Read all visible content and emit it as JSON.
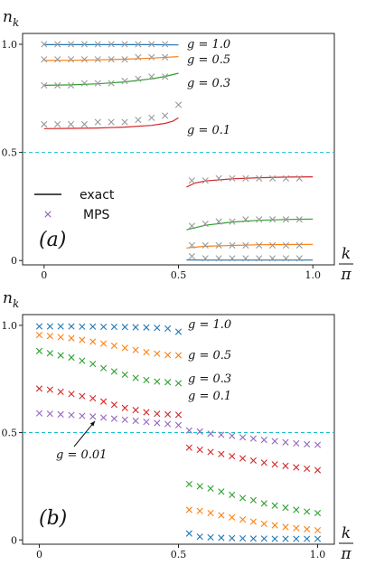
{
  "colors": {
    "g1.0": "#1f77b4",
    "g0.5": "#ff7f0e",
    "g0.3": "#2ca02c",
    "g0.1": "#d62728",
    "g0.01": "#9467bd",
    "mps_marker": "#9467bd",
    "half_line": "#17becf",
    "gray_mps": "#999999"
  },
  "chart_data": [
    {
      "type": "line",
      "panel_label": "(a)",
      "ylabel": "n_k",
      "xlabel": "k/π",
      "xticks": [
        "0",
        "0.5",
        "1.0"
      ],
      "yticks": [
        "0",
        "0.5",
        "1.0"
      ],
      "xlim": [
        -0.08,
        1.08
      ],
      "ylim": [
        -0.02,
        1.05
      ],
      "reference_line_y": 0.5,
      "legend": {
        "position": "lower-left",
        "entries": [
          "exact",
          "MPS"
        ]
      },
      "series": [
        {
          "name": "g = 1.0",
          "label": "g = 1.0",
          "color_key": "g1.0",
          "exact": {
            "x": [
              0.0,
              0.1,
              0.2,
              0.3,
              0.4,
              0.5,
              0.53,
              0.6,
              0.7,
              0.8,
              0.9,
              1.0
            ],
            "y": [
              0.998,
              0.998,
              0.998,
              0.998,
              0.998,
              0.997,
              0.003,
              0.002,
              0.002,
              0.002,
              0.002,
              0.002
            ]
          },
          "mps": {
            "x": [
              0.0,
              0.05,
              0.1,
              0.15,
              0.2,
              0.25,
              0.3,
              0.35,
              0.4,
              0.45,
              0.55,
              0.6,
              0.65,
              0.7,
              0.75,
              0.8,
              0.85,
              0.9,
              0.95
            ],
            "y": [
              1.0,
              1.0,
              1.0,
              1.0,
              1.0,
              1.0,
              1.0,
              1.0,
              1.0,
              1.0,
              0.02,
              0.01,
              0.01,
              0.01,
              0.01,
              0.01,
              0.01,
              0.01,
              0.01
            ]
          }
        },
        {
          "name": "g = 0.5",
          "label": "g = 0.5",
          "color_key": "g0.5",
          "exact": {
            "x": [
              0.0,
              0.1,
              0.2,
              0.3,
              0.4,
              0.5,
              0.53,
              0.6,
              0.7,
              0.8,
              0.9,
              1.0
            ],
            "y": [
              0.925,
              0.926,
              0.928,
              0.931,
              0.936,
              0.943,
              0.058,
              0.066,
              0.07,
              0.073,
              0.074,
              0.075
            ]
          },
          "mps": {
            "x": [
              0.0,
              0.05,
              0.1,
              0.15,
              0.2,
              0.25,
              0.3,
              0.35,
              0.4,
              0.45,
              0.55,
              0.6,
              0.65,
              0.7,
              0.75,
              0.8,
              0.85,
              0.9,
              0.95
            ],
            "y": [
              0.93,
              0.93,
              0.93,
              0.93,
              0.93,
              0.93,
              0.93,
              0.94,
              0.94,
              0.94,
              0.07,
              0.07,
              0.07,
              0.07,
              0.07,
              0.07,
              0.07,
              0.07,
              0.07
            ]
          }
        },
        {
          "name": "g = 0.3",
          "label": "g = 0.3",
          "color_key": "g0.3",
          "exact": {
            "x": [
              0.0,
              0.1,
              0.2,
              0.3,
              0.4,
              0.45,
              0.5,
              0.53,
              0.6,
              0.7,
              0.8,
              0.9,
              1.0
            ],
            "y": [
              0.81,
              0.812,
              0.817,
              0.826,
              0.84,
              0.851,
              0.866,
              0.142,
              0.163,
              0.178,
              0.186,
              0.19,
              0.192
            ]
          },
          "mps": {
            "x": [
              0.0,
              0.05,
              0.1,
              0.15,
              0.2,
              0.25,
              0.3,
              0.35,
              0.4,
              0.45,
              0.55,
              0.6,
              0.65,
              0.7,
              0.75,
              0.8,
              0.85,
              0.9,
              0.95
            ],
            "y": [
              0.81,
              0.81,
              0.81,
              0.82,
              0.82,
              0.82,
              0.83,
              0.84,
              0.85,
              0.85,
              0.16,
              0.17,
              0.18,
              0.18,
              0.19,
              0.19,
              0.19,
              0.19,
              0.19
            ]
          }
        },
        {
          "name": "g = 0.1",
          "label": "g = 0.1",
          "color_key": "g0.1",
          "exact": {
            "x": [
              0.0,
              0.1,
              0.2,
              0.3,
              0.4,
              0.45,
              0.48,
              0.5,
              0.53,
              0.56,
              0.6,
              0.7,
              0.8,
              0.9,
              1.0
            ],
            "y": [
              0.61,
              0.611,
              0.613,
              0.617,
              0.625,
              0.634,
              0.645,
              0.66,
              0.34,
              0.358,
              0.368,
              0.378,
              0.383,
              0.386,
              0.387
            ]
          },
          "mps": {
            "x": [
              0.0,
              0.05,
              0.1,
              0.15,
              0.2,
              0.25,
              0.3,
              0.35,
              0.4,
              0.45,
              0.5,
              0.55,
              0.6,
              0.65,
              0.7,
              0.75,
              0.8,
              0.85,
              0.9,
              0.95
            ],
            "y": [
              0.63,
              0.63,
              0.63,
              0.63,
              0.64,
              0.64,
              0.64,
              0.65,
              0.66,
              0.67,
              0.72,
              0.37,
              0.37,
              0.38,
              0.38,
              0.38,
              0.38,
              0.38,
              0.38,
              0.38
            ]
          }
        }
      ]
    },
    {
      "type": "scatter",
      "panel_label": "(b)",
      "ylabel": "n_k",
      "xlabel": "k/π",
      "xticks": [
        "0",
        "0.5",
        "1.0"
      ],
      "yticks": [
        "0",
        "0.5",
        "1.0"
      ],
      "xlim": [
        -0.06,
        1.06
      ],
      "ylim": [
        -0.02,
        1.05
      ],
      "reference_line_y": 0.5,
      "series": [
        {
          "name": "g = 1.0",
          "label": "g = 1.0",
          "color_key": "g1.0",
          "x": [
            0.0,
            0.0385,
            0.0769,
            0.1154,
            0.1538,
            0.1923,
            0.2308,
            0.2692,
            0.3077,
            0.3462,
            0.3846,
            0.4231,
            0.4615,
            0.5,
            0.5385,
            0.5769,
            0.6154,
            0.6538,
            0.6923,
            0.7308,
            0.7692,
            0.8077,
            0.8462,
            0.8846,
            0.9231,
            0.9615,
            1.0
          ],
          "y": [
            0.995,
            0.995,
            0.995,
            0.995,
            0.994,
            0.994,
            0.993,
            0.993,
            0.992,
            0.991,
            0.99,
            0.988,
            0.985,
            0.97,
            0.03,
            0.015,
            0.012,
            0.01,
            0.008,
            0.007,
            0.006,
            0.006,
            0.005,
            0.005,
            0.005,
            0.005,
            0.005
          ]
        },
        {
          "name": "g = 0.5",
          "label": "g = 0.5",
          "color_key": "g0.5",
          "x": [
            0.0,
            0.0385,
            0.0769,
            0.1154,
            0.1538,
            0.1923,
            0.2308,
            0.2692,
            0.3077,
            0.3462,
            0.3846,
            0.4231,
            0.4615,
            0.5,
            0.5385,
            0.5769,
            0.6154,
            0.6538,
            0.6923,
            0.7308,
            0.7692,
            0.8077,
            0.8462,
            0.8846,
            0.9231,
            0.9615,
            1.0
          ],
          "y": [
            0.955,
            0.95,
            0.945,
            0.94,
            0.932,
            0.924,
            0.915,
            0.905,
            0.895,
            0.885,
            0.875,
            0.868,
            0.862,
            0.86,
            0.14,
            0.135,
            0.125,
            0.115,
            0.105,
            0.095,
            0.085,
            0.075,
            0.068,
            0.06,
            0.055,
            0.05,
            0.045
          ]
        },
        {
          "name": "g = 0.3",
          "label": "g = 0.3",
          "color_key": "g0.3",
          "x": [
            0.0,
            0.0385,
            0.0769,
            0.1154,
            0.1538,
            0.1923,
            0.2308,
            0.2692,
            0.3077,
            0.3462,
            0.3846,
            0.4231,
            0.4615,
            0.5,
            0.5385,
            0.5769,
            0.6154,
            0.6538,
            0.6923,
            0.7308,
            0.7692,
            0.8077,
            0.8462,
            0.8846,
            0.9231,
            0.9615,
            1.0
          ],
          "y": [
            0.88,
            0.87,
            0.86,
            0.85,
            0.835,
            0.82,
            0.8,
            0.785,
            0.77,
            0.755,
            0.745,
            0.738,
            0.735,
            0.73,
            0.26,
            0.25,
            0.24,
            0.225,
            0.21,
            0.195,
            0.185,
            0.17,
            0.16,
            0.15,
            0.14,
            0.132,
            0.125
          ]
        },
        {
          "name": "g = 0.1",
          "label": "g = 0.1",
          "color_key": "g0.1",
          "x": [
            0.0,
            0.0385,
            0.0769,
            0.1154,
            0.1538,
            0.1923,
            0.2308,
            0.2692,
            0.3077,
            0.3462,
            0.3846,
            0.4231,
            0.4615,
            0.5,
            0.5385,
            0.5769,
            0.6154,
            0.6538,
            0.6923,
            0.7308,
            0.7692,
            0.8077,
            0.8462,
            0.8846,
            0.9231,
            0.9615,
            1.0
          ],
          "y": [
            0.705,
            0.7,
            0.69,
            0.68,
            0.67,
            0.66,
            0.645,
            0.63,
            0.615,
            0.605,
            0.595,
            0.588,
            0.585,
            0.583,
            0.43,
            0.42,
            0.41,
            0.4,
            0.39,
            0.38,
            0.37,
            0.36,
            0.352,
            0.345,
            0.338,
            0.332,
            0.325
          ]
        },
        {
          "name": "g = 0.01",
          "label": "g = 0.01",
          "color_key": "g0.01",
          "x": [
            0.0,
            0.0385,
            0.0769,
            0.1154,
            0.1538,
            0.1923,
            0.2308,
            0.2692,
            0.3077,
            0.3462,
            0.3846,
            0.4231,
            0.4615,
            0.5,
            0.5385,
            0.5769,
            0.6154,
            0.6538,
            0.6923,
            0.7308,
            0.7692,
            0.8077,
            0.8462,
            0.8846,
            0.9231,
            0.9615,
            1.0
          ],
          "y": [
            0.59,
            0.588,
            0.585,
            0.582,
            0.578,
            0.575,
            0.57,
            0.565,
            0.56,
            0.555,
            0.55,
            0.545,
            0.54,
            0.535,
            0.51,
            0.505,
            0.495,
            0.49,
            0.485,
            0.478,
            0.472,
            0.466,
            0.46,
            0.455,
            0.45,
            0.446,
            0.443
          ]
        }
      ],
      "annotation": {
        "text": "g = 0.01",
        "points_to_series": "g = 0.01",
        "at_x": 0.2,
        "at_y": 0.575
      }
    }
  ]
}
